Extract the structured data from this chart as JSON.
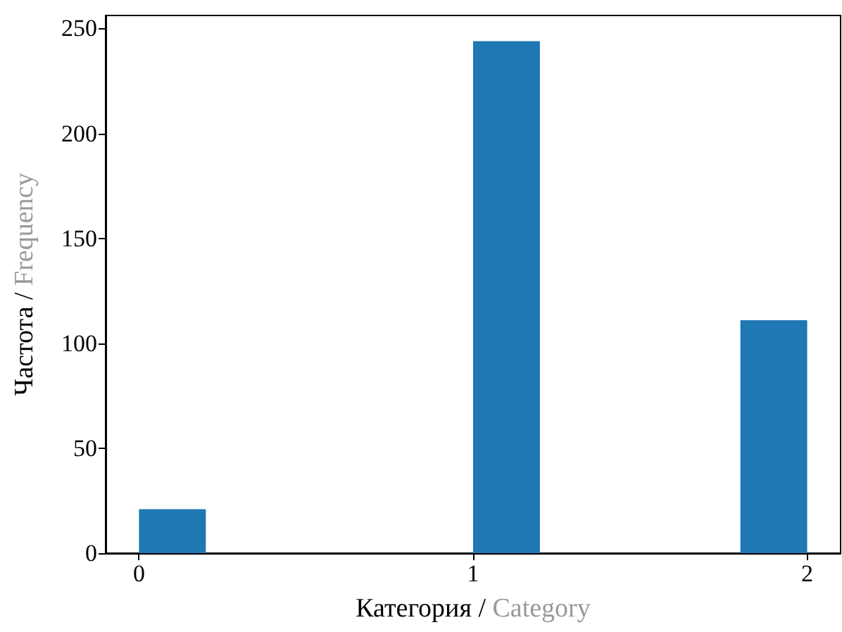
{
  "chart_data": {
    "type": "histogram",
    "xlabel": "Категория / Category",
    "ylabel": "Частота / Frequency",
    "bins": [
      0,
      0.2,
      0.4,
      0.6,
      0.8,
      1.0,
      1.2,
      1.4,
      1.6,
      1.8,
      2.0
    ],
    "values": [
      21,
      0,
      0,
      0,
      0,
      244,
      0,
      0,
      0,
      111
    ],
    "color": "#1f77b4",
    "xlim": [
      -0.1,
      2.1
    ],
    "xticks": [
      0,
      1,
      2
    ],
    "ylim": [
      0,
      256.2
    ],
    "yticks": [
      0,
      50,
      100,
      150,
      200,
      250
    ],
    "grid": false,
    "legend": false
  }
}
